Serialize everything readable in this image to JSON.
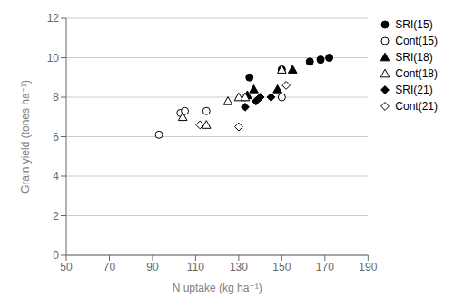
{
  "chart_data": {
    "type": "scatter",
    "xlabel": "N uptake (kg ha⁻¹)",
    "ylabel": "Grain yield (tones ha⁻¹)",
    "xlim": [
      50,
      190
    ],
    "ylim": [
      0,
      12
    ],
    "xticks": [
      50,
      70,
      90,
      110,
      130,
      150,
      170,
      190
    ],
    "yticks": [
      0,
      2,
      4,
      6,
      8,
      10,
      12
    ],
    "grid": "y",
    "legend": "upper right",
    "series": [
      {
        "name": "SRI(15)",
        "marker": "circle",
        "color": "#000000",
        "x": [
          135,
          150,
          163,
          168,
          172
        ],
        "values": [
          9.0,
          9.4,
          9.8,
          9.9,
          10.0
        ]
      },
      {
        "name": "Cont(15)",
        "marker": "circle_open",
        "color": "#000000",
        "x": [
          93,
          103,
          105,
          115,
          133,
          150
        ],
        "values": [
          6.1,
          7.2,
          7.3,
          7.3,
          8.0,
          8.0
        ]
      },
      {
        "name": "SRI(18)",
        "marker": "triangle",
        "color": "#000000",
        "x": [
          134,
          137,
          148,
          155
        ],
        "values": [
          8.1,
          8.4,
          8.4,
          9.4
        ]
      },
      {
        "name": "Cont(18)",
        "marker": "triangle_open",
        "color": "#000000",
        "x": [
          104,
          115,
          125,
          130,
          133,
          150
        ],
        "values": [
          7.0,
          6.6,
          7.8,
          8.0,
          8.0,
          9.4
        ]
      },
      {
        "name": "SRI(21)",
        "marker": "diamond",
        "color": "#000000",
        "x": [
          133,
          138,
          140,
          145
        ],
        "values": [
          7.5,
          7.8,
          8.0,
          8.0
        ]
      },
      {
        "name": "Cont(21)",
        "marker": "diamond_open",
        "color": "#000000",
        "x": [
          112,
          130,
          152
        ],
        "values": [
          6.6,
          6.5,
          8.6
        ]
      }
    ]
  }
}
